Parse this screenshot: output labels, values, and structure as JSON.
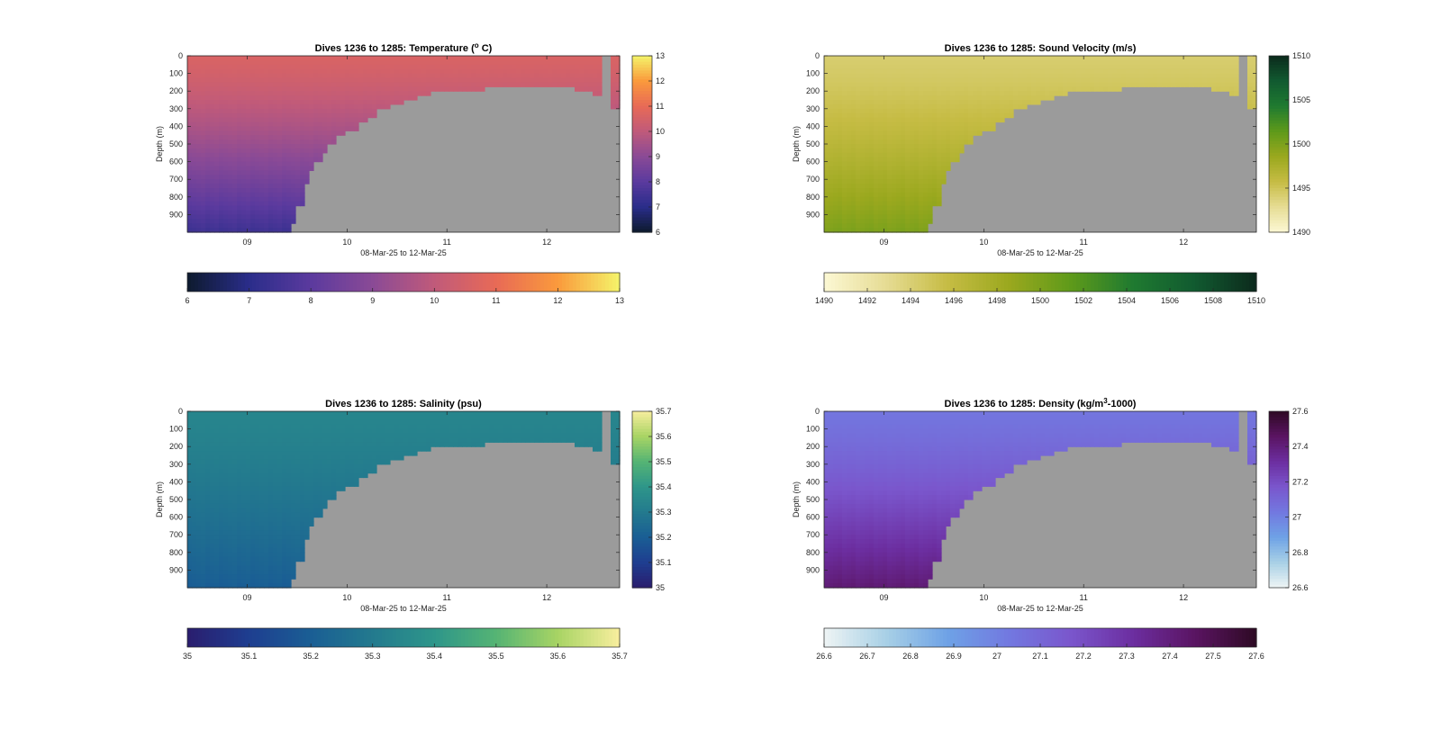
{
  "figure": {
    "ylabel": "Depth (m)",
    "xlabel": "08-Mar-25 to 12-Mar-25"
  },
  "chart_data": [
    {
      "type": "heatmap",
      "title": "Dives 1236 to 1285: Temperature (",
      "title_super": "o",
      "title_tail": " C)",
      "xlabel": "08-Mar-25 to 12-Mar-25",
      "ylabel": "Depth (m)",
      "x_ticks": [
        "09",
        "10",
        "11",
        "12"
      ],
      "x_range_days": [
        8.4,
        12.73
      ],
      "y_ticks": [
        0,
        100,
        200,
        300,
        400,
        500,
        600,
        700,
        800,
        900
      ],
      "ylim": [
        0,
        1000
      ],
      "colorbar": {
        "min": 6,
        "max": 13,
        "ticks": [
          6,
          7,
          8,
          9,
          10,
          11,
          12,
          13
        ]
      },
      "h_colorbar_ticks": [
        6,
        7,
        8,
        9,
        10,
        11,
        12,
        13
      ],
      "colormap": [
        "#0d1a2e",
        "#2a2d8a",
        "#5b3a9e",
        "#8a4a96",
        "#c05a7a",
        "#e86a56",
        "#fa9a3c",
        "#f4f46a"
      ],
      "no_data_color": "#9b9b9b",
      "surface_value": 10.6,
      "deep_value": 7.4
    },
    {
      "type": "heatmap",
      "title": "Dives 1236 to 1285: Sound Velocity (m/s)",
      "xlabel": "08-Mar-25 to 12-Mar-25",
      "ylabel": "Depth (m)",
      "x_ticks": [
        "09",
        "10",
        "11",
        "12"
      ],
      "x_range_days": [
        8.4,
        12.73
      ],
      "y_ticks": [
        0,
        100,
        200,
        300,
        400,
        500,
        600,
        700,
        800,
        900
      ],
      "ylim": [
        0,
        1000
      ],
      "colorbar": {
        "min": 1490,
        "max": 1510,
        "ticks": [
          1490,
          1495,
          1500,
          1505,
          1510
        ]
      },
      "h_colorbar_ticks": [
        1490,
        1492,
        1494,
        1496,
        1498,
        1500,
        1502,
        1504,
        1506,
        1508,
        1510
      ],
      "colormap": [
        "#fcf8d4",
        "#e6dc94",
        "#c6bc44",
        "#9aa81e",
        "#5e9a1a",
        "#1f7a30",
        "#115a30",
        "#0c2a1c"
      ],
      "no_data_color": "#9b9b9b",
      "surface_value": 1494.2,
      "deep_value": 1500
    },
    {
      "type": "heatmap",
      "title": "Dives 1236 to 1285: Salinity (psu)",
      "xlabel": "08-Mar-25 to 12-Mar-25",
      "ylabel": "Depth (m)",
      "x_ticks": [
        "09",
        "10",
        "11",
        "12"
      ],
      "x_range_days": [
        8.4,
        12.73
      ],
      "y_ticks": [
        0,
        100,
        200,
        300,
        400,
        500,
        600,
        700,
        800,
        900
      ],
      "ylim": [
        0,
        1000
      ],
      "colorbar": {
        "min": 35,
        "max": 35.7,
        "ticks": [
          35,
          35.1,
          35.2,
          35.3,
          35.4,
          35.5,
          35.6,
          35.7
        ]
      },
      "h_colorbar_ticks": [
        35,
        35.1,
        35.2,
        35.3,
        35.4,
        35.5,
        35.6,
        35.7
      ],
      "colormap": [
        "#2a1d6e",
        "#1e3e90",
        "#1a5e94",
        "#237a8e",
        "#2e968a",
        "#55b474",
        "#a8d464",
        "#f8ee9e"
      ],
      "no_data_color": "#9b9b9b",
      "surface_value": 35.34,
      "deep_value": 35.2
    },
    {
      "type": "heatmap",
      "title": "Dives 1236 to 1285: Density (kg/m",
      "title_super": "3",
      "title_tail": "-1000)",
      "xlabel": "08-Mar-25 to 12-Mar-25",
      "ylabel": "Depth (m)",
      "x_ticks": [
        "09",
        "10",
        "11",
        "12"
      ],
      "x_range_days": [
        8.4,
        12.73
      ],
      "y_ticks": [
        0,
        100,
        200,
        300,
        400,
        500,
        600,
        700,
        800,
        900
      ],
      "ylim": [
        0,
        1000
      ],
      "colorbar": {
        "min": 26.6,
        "max": 27.6,
        "ticks": [
          26.6,
          26.8,
          27,
          27.2,
          27.4,
          27.6
        ]
      },
      "h_colorbar_ticks": [
        26.6,
        26.7,
        26.8,
        26.9,
        27,
        27.1,
        27.2,
        27.3,
        27.4,
        27.5,
        27.6
      ],
      "colormap": [
        "#eef4f4",
        "#a8d0e6",
        "#6ea2e6",
        "#7278e0",
        "#7a56cc",
        "#6c2ea0",
        "#5a1462",
        "#2e0a24"
      ],
      "no_data_color": "#9b9b9b",
      "surface_value": 27.04,
      "deep_value": 27.42
    }
  ]
}
